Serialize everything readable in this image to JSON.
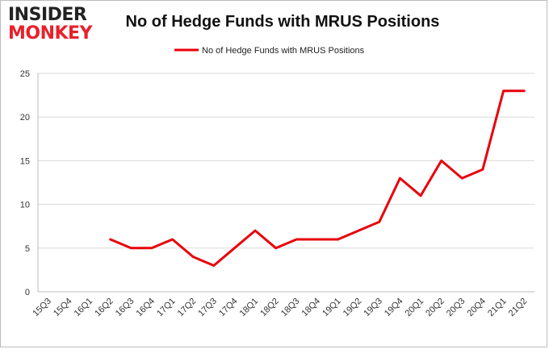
{
  "logo": {
    "line1": "INSIDER",
    "line2": "MONKEY"
  },
  "chart_data": {
    "type": "line",
    "title": "No of Hedge Funds with MRUS Positions",
    "xlabel": "",
    "ylabel": "",
    "categories": [
      "15Q3",
      "15Q4",
      "16Q1",
      "16Q2",
      "16Q3",
      "16Q4",
      "17Q1",
      "17Q2",
      "17Q3",
      "17Q4",
      "18Q1",
      "18Q2",
      "18Q3",
      "18Q4",
      "19Q1",
      "19Q2",
      "19Q3",
      "19Q4",
      "20Q1",
      "20Q2",
      "20Q3",
      "20Q4",
      "21Q1",
      "21Q2"
    ],
    "series": [
      {
        "name": "No of Hedge Funds with MRUS Positions",
        "color": "#e8000b",
        "values": [
          null,
          null,
          null,
          6,
          5,
          5,
          6,
          4,
          3,
          5,
          7,
          5,
          6,
          6,
          6,
          7,
          8,
          13,
          11,
          15,
          13,
          14,
          23,
          23
        ]
      }
    ],
    "ylim": [
      0,
      25
    ],
    "yticks": [
      0,
      5,
      10,
      15,
      20,
      25
    ],
    "grid": true,
    "legend": "top-center"
  }
}
